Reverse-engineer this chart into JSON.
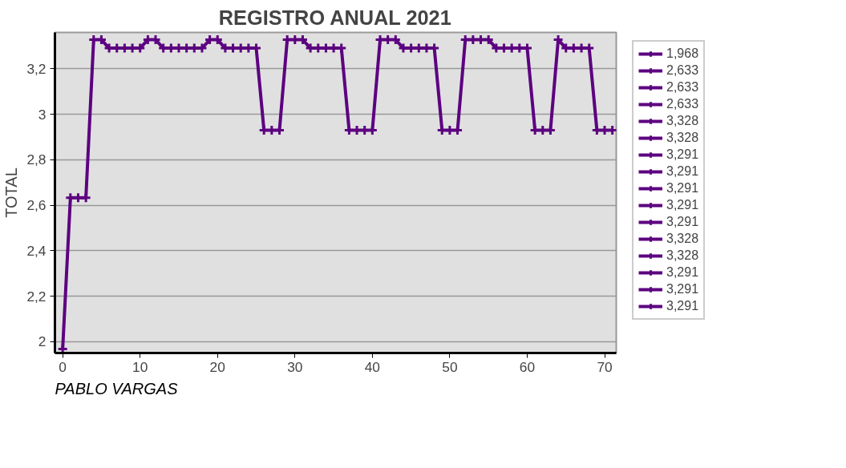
{
  "chart_data": {
    "type": "line",
    "title": "REGISTRO ANUAL 2021",
    "ylabel": "TOTAL",
    "x": [
      0,
      1,
      2,
      3,
      4,
      5,
      6,
      7,
      8,
      9,
      10,
      11,
      12,
      13,
      14,
      15,
      16,
      17,
      18,
      19,
      20,
      21,
      22,
      23,
      24,
      25,
      26,
      27,
      28,
      29,
      30,
      31,
      32,
      33,
      34,
      35,
      36,
      37,
      38,
      39,
      40,
      41,
      42,
      43,
      44,
      45,
      46,
      47,
      48,
      49,
      50,
      51,
      52,
      53,
      54,
      55,
      56,
      57,
      58,
      59,
      60,
      61,
      62,
      63,
      64,
      65,
      66,
      67,
      68,
      69,
      70,
      71
    ],
    "series": [
      {
        "color": "#5c0080",
        "values": [
          1.968,
          2.633,
          2.633,
          2.633,
          3.328,
          3.328,
          3.291,
          3.291,
          3.291,
          3.291,
          3.291,
          3.328,
          3.328,
          3.291,
          3.291,
          3.291,
          3.291,
          3.291,
          3.291,
          3.328,
          3.328,
          3.291,
          3.291,
          3.291,
          3.291,
          3.291,
          2.93,
          2.93,
          2.93,
          3.328,
          3.328,
          3.328,
          3.291,
          3.291,
          3.291,
          3.291,
          3.291,
          2.93,
          2.93,
          2.93,
          2.93,
          3.328,
          3.328,
          3.328,
          3.291,
          3.291,
          3.291,
          3.291,
          3.291,
          2.93,
          2.93,
          2.93,
          3.328,
          3.328,
          3.328,
          3.328,
          3.291,
          3.291,
          3.291,
          3.291,
          3.291,
          2.93,
          2.93,
          2.93,
          3.328,
          3.291,
          3.291,
          3.291,
          3.291,
          2.93,
          2.93,
          2.93
        ]
      }
    ],
    "xlim": [
      -1,
      71.5
    ],
    "xticks": [
      0,
      10,
      20,
      30,
      40,
      50,
      60,
      70
    ],
    "ylim": [
      1.95,
      3.36
    ],
    "yticks": [
      {
        "value": 2,
        "label": "2"
      },
      {
        "value": 2.2,
        "label": "2,2"
      },
      {
        "value": 2.4,
        "label": "2,4"
      },
      {
        "value": 2.6,
        "label": "2,6"
      },
      {
        "value": 2.8,
        "label": "2,8"
      },
      {
        "value": 3,
        "label": "3"
      },
      {
        "value": 3.2,
        "label": "3,2"
      }
    ],
    "grid": "y",
    "marker": "cross",
    "line_style": "solid",
    "annotations": [
      "1,968",
      "2,633",
      "2,633",
      "2,633",
      "3,328",
      "3,328",
      "3,291",
      "3,291",
      "3,291",
      "3,291",
      "3,291",
      "3,328",
      "3,328",
      "3,291",
      "3,291",
      "3,291",
      "PABLO VARGAS"
    ]
  }
}
